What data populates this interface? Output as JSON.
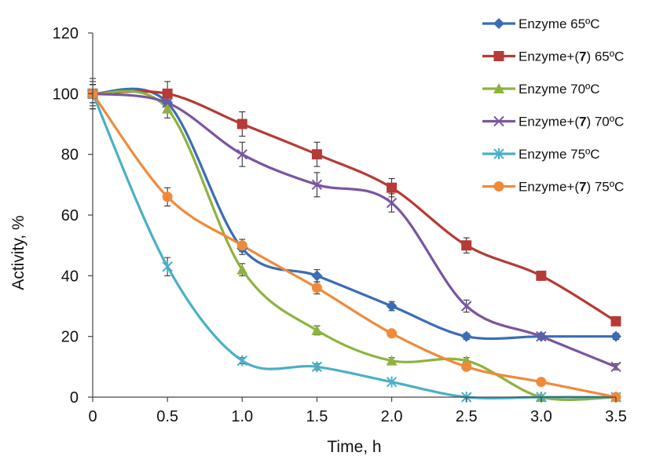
{
  "chart_data": {
    "type": "line",
    "title": "",
    "xlabel": "Time, h",
    "ylabel": "Activity, %",
    "x": [
      0,
      0.5,
      1.0,
      1.5,
      2.0,
      2.5,
      3.0,
      3.5
    ],
    "x_tick_labels": [
      "0",
      "0.5",
      "1.0",
      "1.5",
      "2.0",
      "2.5",
      "3.0",
      "3.5"
    ],
    "y_ticks": [
      0,
      20,
      40,
      60,
      80,
      100,
      120
    ],
    "y_tick_labels": [
      "0",
      "20",
      "40",
      "60",
      "80",
      "100",
      "120"
    ],
    "xlim": [
      0,
      3.5
    ],
    "ylim": [
      0,
      120
    ],
    "grid": false,
    "legend_position": "right",
    "series": [
      {
        "legend_prefix": "Enzyme 65ºC",
        "legend_bold": "",
        "legend_suffix": "",
        "color": "#3A6DB5",
        "marker": "diamond",
        "values": [
          100,
          97,
          49,
          40,
          30,
          20,
          20,
          20
        ],
        "errors": [
          5,
          3,
          2,
          2,
          1.5,
          1,
          1,
          1
        ]
      },
      {
        "legend_prefix": "Enzyme+(",
        "legend_bold": "7",
        "legend_suffix": ") 65ºC",
        "color": "#B63A36",
        "marker": "square",
        "values": [
          100,
          100,
          90,
          80,
          69,
          50,
          40,
          25
        ],
        "errors": [
          5,
          4,
          4,
          4,
          3,
          2.5,
          1.5,
          1
        ]
      },
      {
        "legend_prefix": "Enzyme 70ºC",
        "legend_bold": "",
        "legend_suffix": "",
        "color": "#8DB33E",
        "marker": "triangle",
        "values": [
          100,
          95,
          42,
          22,
          12,
          12,
          0,
          0
        ],
        "errors": [
          3,
          3,
          2,
          1.5,
          1,
          1,
          0.5,
          0.5
        ]
      },
      {
        "legend_prefix": "Enzyme+(",
        "legend_bold": "7",
        "legend_suffix": ") 70ºC",
        "color": "#7A55A0",
        "marker": "x",
        "values": [
          100,
          97,
          80,
          70,
          64,
          30,
          20,
          10
        ],
        "errors": [
          4,
          3,
          4,
          4,
          3,
          2,
          1,
          1
        ]
      },
      {
        "legend_prefix": "Enzyme 75ºC",
        "legend_bold": "",
        "legend_suffix": "",
        "color": "#4BAFC6",
        "marker": "star",
        "values": [
          100,
          43,
          12,
          10,
          5,
          0,
          0,
          0
        ],
        "errors": [
          3,
          3,
          1,
          1,
          0.5,
          0.5,
          0.5,
          0.5
        ]
      },
      {
        "legend_prefix": "Enzyme+(",
        "legend_bold": "7",
        "legend_suffix": ") 75ºC",
        "color": "#F08A3A",
        "marker": "circle",
        "values": [
          100,
          66,
          50,
          36,
          21,
          10,
          5,
          0
        ],
        "errors": [
          3,
          3,
          2,
          2,
          1,
          1,
          1,
          0.5
        ]
      }
    ]
  }
}
